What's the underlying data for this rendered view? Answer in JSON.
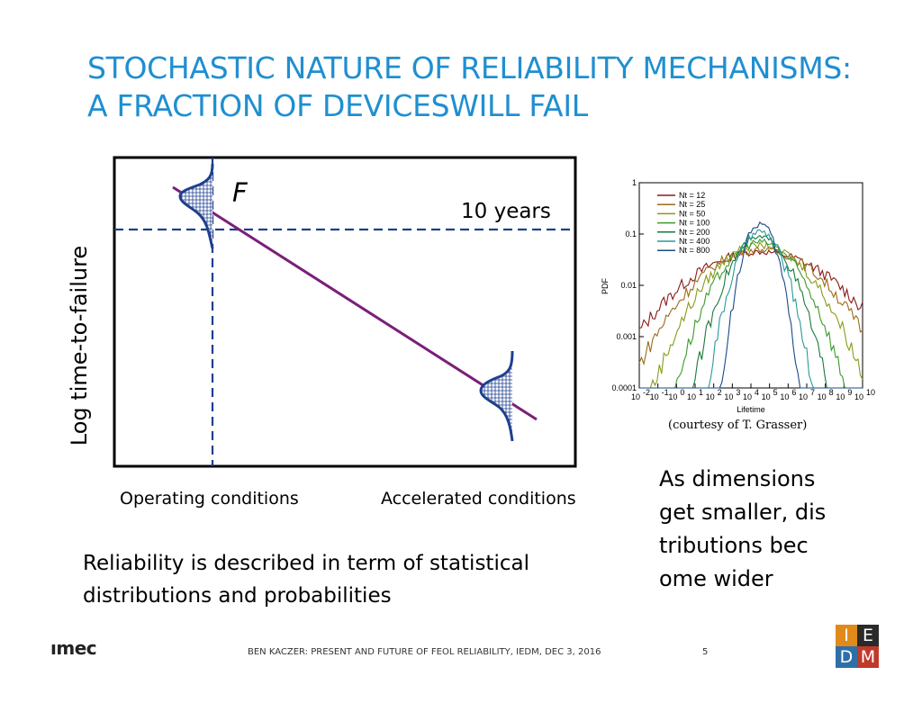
{
  "title": {
    "line1": "STOCHASTIC NATURE OF RELIABILITY MECHANISMS:",
    "line2": "A FRACTION OF DEVICESWILL FAIL"
  },
  "diagram": {
    "ylabel": "Log time-to-failure",
    "f_label": "F",
    "ten_years": "10 years",
    "operating": "Operating conditions",
    "accelerated": "Accelerated conditions",
    "line_color": "#7a1f7a",
    "dist_color": "#1f3f8f"
  },
  "summary": {
    "line1": "Reliability is described in term of statistical",
    "line2": "distributions and probabilities"
  },
  "side_note": {
    "line1": "As dimensions",
    "line2": "get smaller, dis",
    "line3": "tributions bec",
    "line4": "ome wider"
  },
  "courtesy": "(courtesy of T. Grasser)",
  "chart_data": {
    "type": "line",
    "xlabel": "Lifetime",
    "ylabel": "PDF",
    "x_log": true,
    "y_log": true,
    "xlim": [
      0.01,
      10000000000
    ],
    "ylim": [
      0.0001,
      1
    ],
    "x_ticks": [
      "10",
      "10",
      "10",
      "10",
      "10",
      "10",
      "10",
      "10",
      "10",
      "10",
      "10",
      "10",
      "10"
    ],
    "x_tick_exps": [
      "-2",
      "-1",
      "0",
      "1",
      "2",
      "3",
      "4",
      "5",
      "6",
      "7",
      "8",
      "9",
      "10"
    ],
    "y_ticks": [
      "1",
      "0.1",
      "0.01",
      "0.001",
      "0.0001"
    ],
    "legend_position": "top-left",
    "series": [
      {
        "name": "Nt = 12",
        "color": "#8b1a1a",
        "center_log": 4.5,
        "peak": 0.045,
        "width": 4.2
      },
      {
        "name": "Nt = 25",
        "color": "#9b6a1a",
        "center_log": 4.5,
        "peak": 0.05,
        "width": 3.5
      },
      {
        "name": "Nt = 50",
        "color": "#8a9a1a",
        "center_log": 4.5,
        "peak": 0.06,
        "width": 2.8
      },
      {
        "name": "Nt = 100",
        "color": "#3a9a2a",
        "center_log": 4.5,
        "peak": 0.07,
        "width": 2.2
      },
      {
        "name": "Nt = 200",
        "color": "#1a7a3a",
        "center_log": 4.5,
        "peak": 0.085,
        "width": 1.7
      },
      {
        "name": "Nt = 400",
        "color": "#2a9a9a",
        "center_log": 4.5,
        "peak": 0.11,
        "width": 1.3
      },
      {
        "name": "Nt = 800",
        "color": "#1a4a8a",
        "center_log": 4.5,
        "peak": 0.16,
        "width": 0.95
      }
    ]
  },
  "footer": {
    "text": "BEN KACZER: PRESENT AND FUTURE OF FEOL RELIABILITY, IEDM, DEC 3, 2016",
    "page": "5"
  },
  "logo": {
    "imec": "ımec"
  },
  "iedm_logo": {
    "letters": [
      "I",
      "E",
      "D",
      "M"
    ],
    "colors": [
      "#e08a1a",
      "#2a2a2a",
      "#2f6fa8",
      "#c0392b"
    ]
  }
}
